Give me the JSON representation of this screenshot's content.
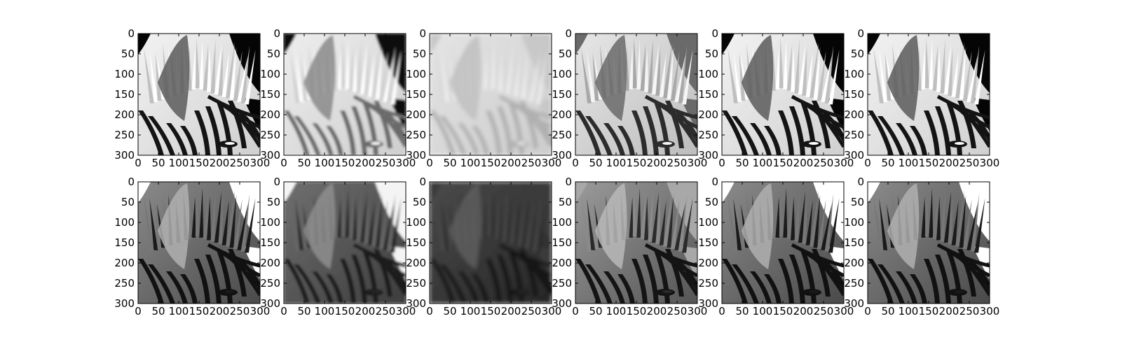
{
  "figure": {
    "rows": 2,
    "cols": 6,
    "background": "#ffffff",
    "axis_color": "#000000"
  },
  "chart_data": [
    {
      "type": "image",
      "row": 0,
      "col": 0,
      "colormap": "gray",
      "content": "zebra-mane",
      "tone": "light",
      "variant": "sharp",
      "xlim": [
        0,
        300
      ],
      "ylim": [
        300,
        0
      ],
      "xticks": [
        0,
        50,
        100,
        150,
        200,
        250,
        300
      ],
      "yticks": [
        0,
        50,
        100,
        150,
        200,
        250,
        300
      ]
    },
    {
      "type": "image",
      "row": 0,
      "col": 1,
      "colormap": "gray",
      "content": "zebra-mane",
      "tone": "light",
      "variant": "soft",
      "xlim": [
        0,
        300
      ],
      "ylim": [
        300,
        0
      ],
      "xticks": [
        0,
        50,
        100,
        150,
        200,
        250,
        300
      ],
      "yticks": [
        0,
        50,
        100,
        150,
        200,
        250,
        300
      ]
    },
    {
      "type": "image",
      "row": 0,
      "col": 2,
      "colormap": "gray",
      "content": "zebra-mane",
      "tone": "light",
      "variant": "washed",
      "xlim": [
        0,
        300
      ],
      "ylim": [
        300,
        0
      ],
      "xticks": [
        0,
        50,
        100,
        150,
        200,
        250,
        300
      ],
      "yticks": [
        0,
        50,
        100,
        150,
        200,
        250,
        300
      ]
    },
    {
      "type": "image",
      "row": 0,
      "col": 3,
      "colormap": "gray",
      "content": "zebra-mane",
      "tone": "light",
      "variant": "mid",
      "xlim": [
        0,
        300
      ],
      "ylim": [
        300,
        0
      ],
      "xticks": [
        0,
        50,
        100,
        150,
        200,
        250,
        300
      ],
      "yticks": [
        0,
        50,
        100,
        150,
        200,
        250,
        300
      ]
    },
    {
      "type": "image",
      "row": 0,
      "col": 4,
      "colormap": "gray",
      "content": "zebra-mane",
      "tone": "light",
      "variant": "sharp",
      "xlim": [
        0,
        300
      ],
      "ylim": [
        300,
        0
      ],
      "xticks": [
        0,
        50,
        100,
        150,
        200,
        250,
        300
      ],
      "yticks": [
        0,
        50,
        100,
        150,
        200,
        250,
        300
      ]
    },
    {
      "type": "image",
      "row": 0,
      "col": 5,
      "colormap": "gray",
      "content": "zebra-mane",
      "tone": "light",
      "variant": "sharp",
      "xlim": [
        0,
        300
      ],
      "ylim": [
        300,
        0
      ],
      "xticks": [
        0,
        50,
        100,
        150,
        200,
        250,
        300
      ],
      "yticks": [
        0,
        50,
        100,
        150,
        200,
        250,
        300
      ]
    },
    {
      "type": "image",
      "row": 1,
      "col": 0,
      "colormap": "gray",
      "content": "zebra-mane",
      "tone": "dark",
      "variant": "sharp",
      "xlim": [
        0,
        300
      ],
      "ylim": [
        300,
        0
      ],
      "xticks": [
        0,
        50,
        100,
        150,
        200,
        250,
        300
      ],
      "yticks": [
        0,
        50,
        100,
        150,
        200,
        250,
        300
      ]
    },
    {
      "type": "image",
      "row": 1,
      "col": 1,
      "colormap": "gray",
      "content": "zebra-mane",
      "tone": "dark",
      "variant": "soft",
      "xlim": [
        0,
        300
      ],
      "ylim": [
        300,
        0
      ],
      "xticks": [
        0,
        50,
        100,
        150,
        200,
        250,
        300
      ],
      "yticks": [
        0,
        50,
        100,
        150,
        200,
        250,
        300
      ]
    },
    {
      "type": "image",
      "row": 1,
      "col": 2,
      "colormap": "gray",
      "content": "zebra-mane",
      "tone": "dark",
      "variant": "washed",
      "xlim": [
        0,
        300
      ],
      "ylim": [
        300,
        0
      ],
      "xticks": [
        0,
        50,
        100,
        150,
        200,
        250,
        300
      ],
      "yticks": [
        0,
        50,
        100,
        150,
        200,
        250,
        300
      ]
    },
    {
      "type": "image",
      "row": 1,
      "col": 3,
      "colormap": "gray",
      "content": "zebra-mane",
      "tone": "dark",
      "variant": "mid",
      "xlim": [
        0,
        300
      ],
      "ylim": [
        300,
        0
      ],
      "xticks": [
        0,
        50,
        100,
        150,
        200,
        250,
        300
      ],
      "yticks": [
        0,
        50,
        100,
        150,
        200,
        250,
        300
      ]
    },
    {
      "type": "image",
      "row": 1,
      "col": 4,
      "colormap": "gray",
      "content": "zebra-mane",
      "tone": "dark",
      "variant": "sharp",
      "xlim": [
        0,
        300
      ],
      "ylim": [
        300,
        0
      ],
      "xticks": [
        0,
        50,
        100,
        150,
        200,
        250,
        300
      ],
      "yticks": [
        0,
        50,
        100,
        150,
        200,
        250,
        300
      ]
    },
    {
      "type": "image",
      "row": 1,
      "col": 5,
      "colormap": "gray",
      "content": "zebra-mane",
      "tone": "dark",
      "variant": "sharp",
      "xlim": [
        0,
        300
      ],
      "ylim": [
        300,
        0
      ],
      "xticks": [
        0,
        50,
        100,
        150,
        200,
        250,
        300
      ],
      "yticks": [
        0,
        50,
        100,
        150,
        200,
        250,
        300
      ]
    }
  ]
}
